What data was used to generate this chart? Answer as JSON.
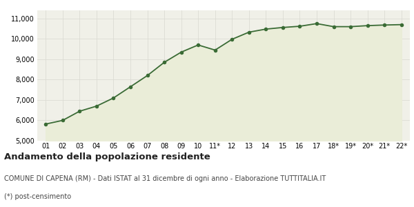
{
  "x_labels": [
    "01",
    "02",
    "03",
    "04",
    "05",
    "06",
    "07",
    "08",
    "09",
    "10",
    "11*",
    "12",
    "13",
    "14",
    "15",
    "16",
    "17",
    "18*",
    "19*",
    "20*",
    "21*",
    "22*"
  ],
  "values": [
    5820,
    6000,
    6450,
    6700,
    7100,
    7650,
    8200,
    8850,
    9350,
    9700,
    9450,
    9980,
    10330,
    10480,
    10560,
    10620,
    10750,
    10600,
    10600,
    10650,
    10680,
    10700
  ],
  "line_color": "#3a6b35",
  "fill_color": "#eaedd8",
  "marker_color": "#3a6b35",
  "bg_color": "#f0f0e8",
  "grid_color": "#d8d8d0",
  "ylim": [
    5000,
    11400
  ],
  "yticks": [
    5000,
    6000,
    7000,
    8000,
    9000,
    10000,
    11000
  ],
  "title": "Andamento della popolazione residente",
  "subtitle": "COMUNE DI CAPENA (RM) - Dati ISTAT al 31 dicembre di ogni anno - Elaborazione TUTTITALIA.IT",
  "footnote": "(*) post-censimento",
  "title_fontsize": 9.5,
  "subtitle_fontsize": 7.0,
  "footnote_fontsize": 7.0,
  "tick_fontsize": 7.0
}
